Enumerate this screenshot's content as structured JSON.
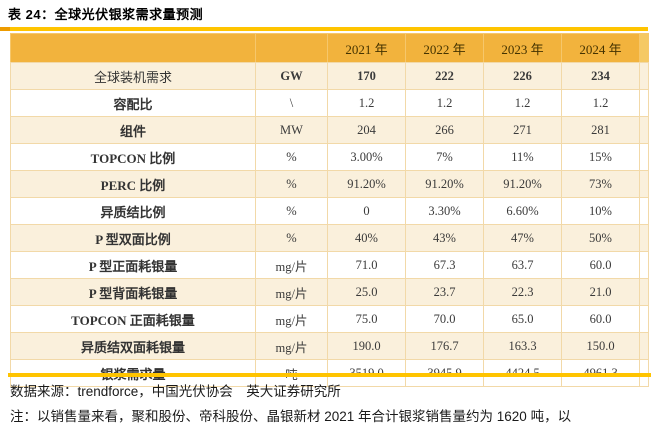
{
  "title": "表 24：全球光伏银浆需求量预测",
  "accent_colors": {
    "header_orange": "#F2B33D",
    "rule_gold": "#FFC400",
    "row_cream": "#FAF0DC",
    "cell_border": "#F2D9A8"
  },
  "table": {
    "header_years": [
      "2021 年",
      "2022 年",
      "2023 年",
      "2024 年"
    ],
    "rows": [
      {
        "label": "全球装机需求",
        "unit": "GW",
        "values": [
          "170",
          "222",
          "226",
          "234"
        ],
        "bold_label": false,
        "bold_values": true
      },
      {
        "label": "容配比",
        "unit": "\\",
        "values": [
          "1.2",
          "1.2",
          "1.2",
          "1.2"
        ],
        "bold_label": true,
        "bold_values": false
      },
      {
        "label": "组件",
        "unit": "MW",
        "values": [
          "204",
          "266",
          "271",
          "281"
        ],
        "bold_label": true,
        "bold_values": false
      },
      {
        "label": "TOPCON 比例",
        "unit": "%",
        "values": [
          "3.00%",
          "7%",
          "11%",
          "15%"
        ],
        "bold_label": true,
        "bold_values": false
      },
      {
        "label": "PERC 比例",
        "unit": "%",
        "values": [
          "91.20%",
          "91.20%",
          "91.20%",
          "73%"
        ],
        "bold_label": true,
        "bold_values": false
      },
      {
        "label": "异质结比例",
        "unit": "%",
        "values": [
          "0",
          "3.30%",
          "6.60%",
          "10%"
        ],
        "bold_label": true,
        "bold_values": false
      },
      {
        "label": "P 型双面比例",
        "unit": "%",
        "values": [
          "40%",
          "43%",
          "47%",
          "50%"
        ],
        "bold_label": true,
        "bold_values": false
      },
      {
        "label": "P 型正面耗银量",
        "unit": "mg/片",
        "values": [
          "71.0",
          "67.3",
          "63.7",
          "60.0"
        ],
        "bold_label": true,
        "bold_values": false
      },
      {
        "label": "P 型背面耗银量",
        "unit": "mg/片",
        "values": [
          "25.0",
          "23.7",
          "22.3",
          "21.0"
        ],
        "bold_label": true,
        "bold_values": false
      },
      {
        "label": "TOPCON 正面耗银量",
        "unit": "mg/片",
        "values": [
          "75.0",
          "70.0",
          "65.0",
          "60.0"
        ],
        "bold_label": true,
        "bold_values": false
      },
      {
        "label": "异质结双面耗银量",
        "unit": "mg/片",
        "values": [
          "190.0",
          "176.7",
          "163.3",
          "150.0"
        ],
        "bold_label": true,
        "bold_values": false
      },
      {
        "label": "银浆需求量",
        "unit": "吨",
        "values": [
          "3519.0",
          "3945.9",
          "4424.5",
          "4961.3"
        ],
        "bold_label": true,
        "bold_values": false
      }
    ]
  },
  "footer": {
    "source": "数据来源：trendforce，中国光伏协会　英大证券研究所",
    "note": "注：以销售量来看，聚和股份、帝科股份、晶银新材 2021 年合计银浆销售量约为 1620 吨，以"
  }
}
